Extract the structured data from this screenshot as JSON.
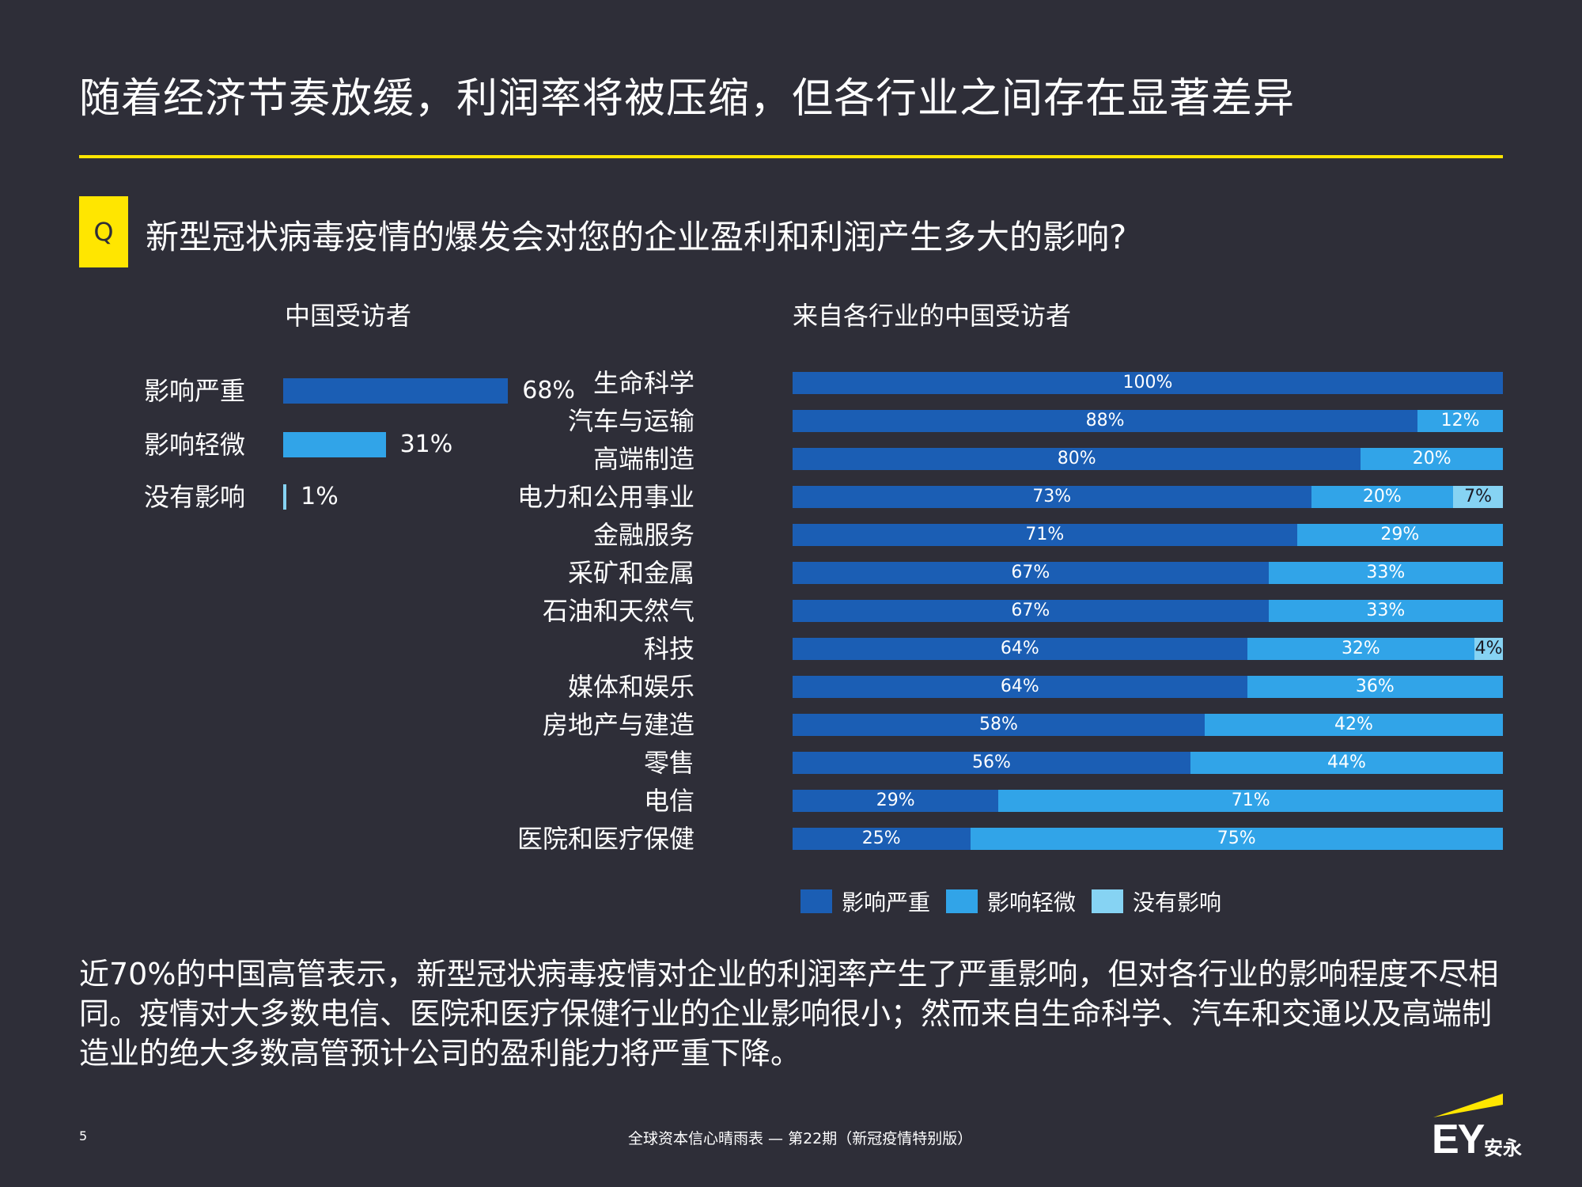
{
  "header": {
    "title": "随着经济节奏放缓，利润率将被压缩，但各行业之间存在显著差异"
  },
  "question": {
    "badge": "Q",
    "text": "新型冠状病毒疫情的爆发会对您的企业盈利和利润产生多大的影响?"
  },
  "colors": {
    "background": "#2e2e38",
    "accent": "#ffe600",
    "severe": "#1b5eb4",
    "mild": "#31a4e8",
    "none": "#86d3f3"
  },
  "chart_data": [
    {
      "type": "bar",
      "orientation": "horizontal",
      "title": "中国受访者",
      "categories": [
        "影响严重",
        "影响轻微",
        "没有影响"
      ],
      "values": [
        68,
        31,
        1
      ],
      "value_labels": [
        "68%",
        "31%",
        "1%"
      ],
      "unit": "%",
      "xlim": [
        0,
        100
      ]
    },
    {
      "type": "bar",
      "orientation": "horizontal",
      "stacked": true,
      "title": "来自各行业的中国受访者",
      "categories": [
        "生命科学",
        "汽车与运输",
        "高端制造",
        "电力和公用事业",
        "金融服务",
        "采矿和金属",
        "石油和天然气",
        "科技",
        "媒体和娱乐",
        "房地产与建造",
        "零售",
        "电信",
        "医院和医疗保健"
      ],
      "series": [
        {
          "name": "影响严重",
          "key": "severe",
          "values": [
            100,
            88,
            80,
            73,
            71,
            67,
            67,
            64,
            64,
            58,
            56,
            29,
            25
          ]
        },
        {
          "name": "影响轻微",
          "key": "mild",
          "values": [
            0,
            12,
            20,
            20,
            29,
            33,
            33,
            32,
            36,
            42,
            44,
            71,
            75
          ]
        },
        {
          "name": "没有影响",
          "key": "none",
          "values": [
            0,
            0,
            0,
            7,
            0,
            0,
            0,
            4,
            0,
            0,
            0,
            0,
            0
          ]
        }
      ],
      "unit": "%",
      "legend": [
        "影响严重",
        "影响轻微",
        "没有影响"
      ],
      "legend_position": "bottom"
    }
  ],
  "summary": {
    "text": "近70%的中国高管表示，新型冠状病毒疫情对企业的利润率产生了严重影响，但对各行业的影响程度不尽相同。疫情对大多数电信、医院和医疗保健行业的企业影响很小；然而来自生命科学、汽车和交通以及高端制造业的绝大多数高管预计公司的盈利能力将严重下降。"
  },
  "footer": {
    "page_number": "5",
    "publication": "全球资本信心晴雨表 — 第22期（新冠疫情特别版）",
    "logo_text": "EY",
    "logo_cn": "安永"
  }
}
